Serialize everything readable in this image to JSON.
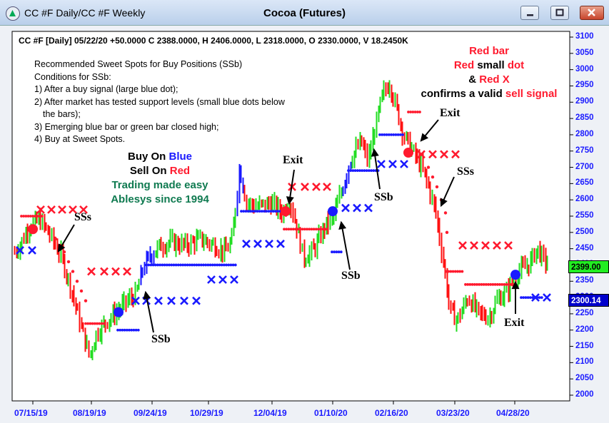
{
  "window": {
    "tab_text": "CC #F Daily/CC #F Weekly",
    "chart_title": "Cocoa (Futures)"
  },
  "header": {
    "quote_line": "CC #F [Daily] 05/22/20  +50.0000 C 2388.0000, H 2406.0000, L 2318.0000, O 2330.0000, V 18.2450K"
  },
  "ssb_text": {
    "title": "Recommended Sweet Spots for Buy Positions (SSb)",
    "conditions": "Conditions for SSb:",
    "items": [
      "1) After a buy signal (large blue dot);",
      "2) After market has tested support levels (small blue dots below",
      "the bars);",
      "3) Emerging blue bar or green bar closed high;",
      "4) Buy at Sweet Spots."
    ]
  },
  "buy_sell": {
    "buy_on": "Buy On",
    "blue": "Blue",
    "sell_on": "Sell On",
    "red": "Red",
    "line3": "Trading made easy",
    "line4": "Ablesys since 1994"
  },
  "red_note": {
    "line1": "Red bar",
    "line2a": "Red",
    "line2b": "small",
    "line2c": "dot",
    "line3a": "&",
    "line3b": "Red X",
    "line4a": "confirms a valid",
    "line4b": "sell signal"
  },
  "labels": {
    "ssb": "SSb",
    "sss": "SSs",
    "exit": "Exit"
  },
  "price_boxes": {
    "last": "2399.00",
    "support": "2300.14"
  },
  "chart_data": {
    "type": "bar",
    "title": "Cocoa (Futures)",
    "y_ticks": [
      "3100",
      "3050",
      "3000",
      "2950",
      "2900",
      "2850",
      "2800",
      "2750",
      "2700",
      "2650",
      "2600",
      "2550",
      "2500",
      "2450",
      "2400",
      "2350",
      "2300",
      "2250",
      "2200",
      "2150",
      "2100",
      "2050",
      "2000"
    ],
    "x_ticks": [
      "07/15/19",
      "08/19/19",
      "09/24/19",
      "10/29/19",
      "12/04/19",
      "01/10/20",
      "02/16/20",
      "03/23/20",
      "04/28/20"
    ],
    "ylim": [
      2000,
      3100
    ],
    "colors": {
      "up": "#22dd22",
      "down": "#ff1111",
      "strong_up": "#1a1aff",
      "support": "#1a1aff",
      "resistance": "#ff1a2e"
    }
  }
}
